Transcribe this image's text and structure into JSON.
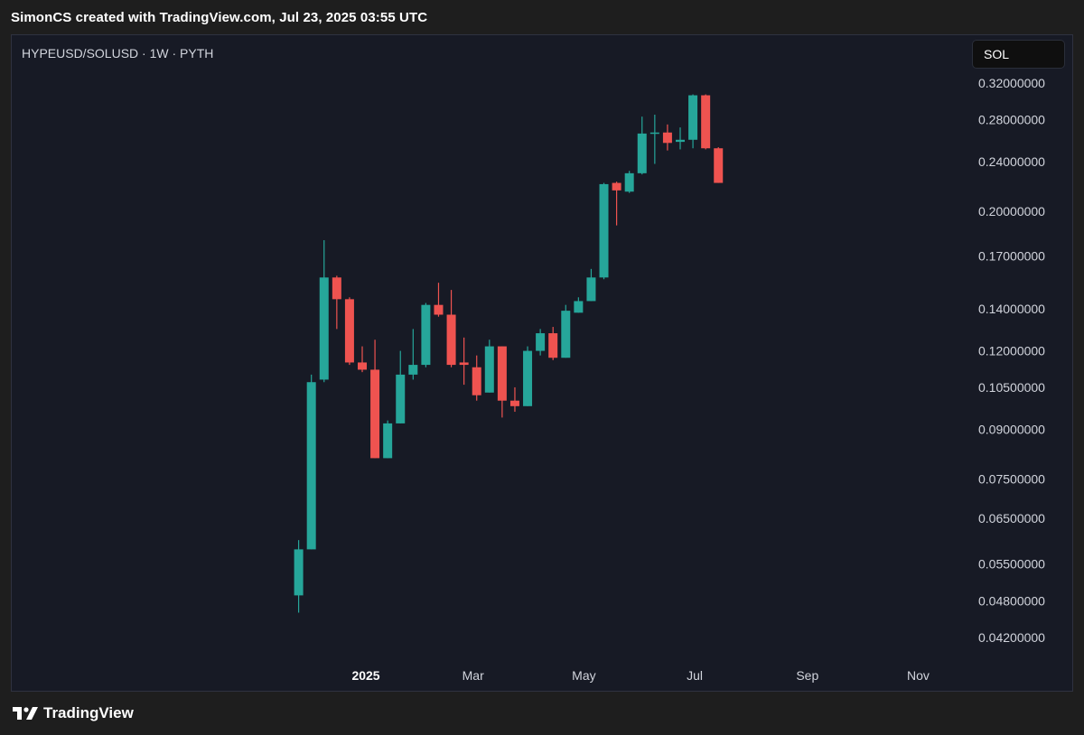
{
  "caption": "SimonCS created with TradingView.com, Jul 23, 2025 03:55 UTC",
  "symbol": "HYPEUSD/SOLUSD · 1W · PYTH",
  "currency_button": "SOL",
  "brand": {
    "name": "TradingView",
    "logo_icon": "tradingview-logo-icon"
  },
  "colors": {
    "up": "#26a69a",
    "down": "#ef5350",
    "background": "#171a25",
    "text": "#d1d4dc"
  },
  "chart_data": {
    "type": "candlestick",
    "title": "HYPEUSD/SOLUSD · 1W · PYTH",
    "yscale": "log",
    "ylim": [
      0.039,
      0.34
    ],
    "y_ticks": [
      "0.32000000",
      "0.28000000",
      "0.24000000",
      "0.20000000",
      "0.17000000",
      "0.14000000",
      "0.12000000",
      "0.10500000",
      "0.09000000",
      "0.07500000",
      "0.06500000",
      "0.05500000",
      "0.04800000",
      "0.04200000"
    ],
    "x_ticks": [
      {
        "label": "2025",
        "date": "2025-01-01",
        "bold": true
      },
      {
        "label": "Mar",
        "date": "2025-03-01",
        "bold": false
      },
      {
        "label": "May",
        "date": "2025-05-01",
        "bold": false
      },
      {
        "label": "Jul",
        "date": "2025-07-01",
        "bold": false
      },
      {
        "label": "Sep",
        "date": "2025-09-01",
        "bold": false
      },
      {
        "label": "Nov",
        "date": "2025-11-01",
        "bold": false
      }
    ],
    "candles": [
      {
        "date": "2024-11-25",
        "open": 0.049,
        "high": 0.06,
        "low": 0.046,
        "close": 0.058
      },
      {
        "date": "2024-12-02",
        "open": 0.058,
        "high": 0.11,
        "low": 0.058,
        "close": 0.107
      },
      {
        "date": "2024-12-09",
        "open": 0.108,
        "high": 0.18,
        "low": 0.107,
        "close": 0.157
      },
      {
        "date": "2024-12-16",
        "open": 0.157,
        "high": 0.158,
        "low": 0.13,
        "close": 0.145
      },
      {
        "date": "2024-12-23",
        "open": 0.145,
        "high": 0.146,
        "low": 0.114,
        "close": 0.115
      },
      {
        "date": "2024-12-30",
        "open": 0.115,
        "high": 0.122,
        "low": 0.111,
        "close": 0.112
      },
      {
        "date": "2025-01-06",
        "open": 0.112,
        "high": 0.125,
        "low": 0.081,
        "close": 0.081
      },
      {
        "date": "2025-01-13",
        "open": 0.081,
        "high": 0.093,
        "low": 0.081,
        "close": 0.092
      },
      {
        "date": "2025-01-20",
        "open": 0.092,
        "high": 0.12,
        "low": 0.092,
        "close": 0.11
      },
      {
        "date": "2025-01-27",
        "open": 0.11,
        "high": 0.13,
        "low": 0.108,
        "close": 0.114
      },
      {
        "date": "2025-02-03",
        "open": 0.114,
        "high": 0.143,
        "low": 0.113,
        "close": 0.142
      },
      {
        "date": "2025-02-10",
        "open": 0.142,
        "high": 0.154,
        "low": 0.136,
        "close": 0.137
      },
      {
        "date": "2025-02-17",
        "open": 0.137,
        "high": 0.15,
        "low": 0.113,
        "close": 0.114
      },
      {
        "date": "2025-02-24",
        "open": 0.115,
        "high": 0.126,
        "low": 0.106,
        "close": 0.114
      },
      {
        "date": "2025-03-03",
        "open": 0.113,
        "high": 0.118,
        "low": 0.1,
        "close": 0.102
      },
      {
        "date": "2025-03-10",
        "open": 0.103,
        "high": 0.125,
        "low": 0.103,
        "close": 0.122
      },
      {
        "date": "2025-03-17",
        "open": 0.122,
        "high": 0.122,
        "low": 0.094,
        "close": 0.1
      },
      {
        "date": "2025-03-24",
        "open": 0.1,
        "high": 0.105,
        "low": 0.096,
        "close": 0.098
      },
      {
        "date": "2025-03-31",
        "open": 0.098,
        "high": 0.122,
        "low": 0.098,
        "close": 0.12
      },
      {
        "date": "2025-04-07",
        "open": 0.12,
        "high": 0.13,
        "low": 0.118,
        "close": 0.128
      },
      {
        "date": "2025-04-14",
        "open": 0.128,
        "high": 0.131,
        "low": 0.116,
        "close": 0.117
      },
      {
        "date": "2025-04-21",
        "open": 0.117,
        "high": 0.142,
        "low": 0.117,
        "close": 0.139
      },
      {
        "date": "2025-04-28",
        "open": 0.138,
        "high": 0.146,
        "low": 0.138,
        "close": 0.144
      },
      {
        "date": "2025-05-05",
        "open": 0.144,
        "high": 0.162,
        "low": 0.144,
        "close": 0.157
      },
      {
        "date": "2025-05-12",
        "open": 0.157,
        "high": 0.222,
        "low": 0.156,
        "close": 0.221
      },
      {
        "date": "2025-05-19",
        "open": 0.222,
        "high": 0.223,
        "low": 0.19,
        "close": 0.216
      },
      {
        "date": "2025-05-26",
        "open": 0.215,
        "high": 0.232,
        "low": 0.214,
        "close": 0.23
      },
      {
        "date": "2025-06-02",
        "open": 0.23,
        "high": 0.283,
        "low": 0.229,
        "close": 0.266
      },
      {
        "date": "2025-06-09",
        "open": 0.266,
        "high": 0.285,
        "low": 0.238,
        "close": 0.267
      },
      {
        "date": "2025-06-16",
        "open": 0.267,
        "high": 0.275,
        "low": 0.25,
        "close": 0.257
      },
      {
        "date": "2025-06-23",
        "open": 0.258,
        "high": 0.272,
        "low": 0.251,
        "close": 0.26
      },
      {
        "date": "2025-06-30",
        "open": 0.26,
        "high": 0.307,
        "low": 0.252,
        "close": 0.306
      },
      {
        "date": "2025-07-07",
        "open": 0.306,
        "high": 0.307,
        "low": 0.251,
        "close": 0.252
      },
      {
        "date": "2025-07-14",
        "open": 0.252,
        "high": 0.253,
        "low": 0.222,
        "close": 0.222
      }
    ]
  }
}
